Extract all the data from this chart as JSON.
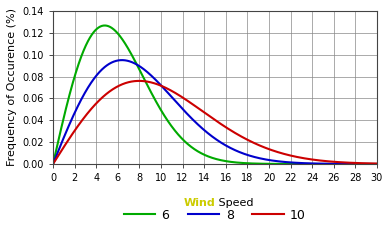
{
  "title": "",
  "xlabel_wind": "Wind",
  "xlabel_speed": " Speed",
  "ylabel": "Frequency of Occurence (%)",
  "xlim": [
    0,
    30
  ],
  "ylim": [
    0,
    0.14
  ],
  "xticks": [
    0,
    2,
    4,
    6,
    8,
    10,
    12,
    14,
    16,
    18,
    20,
    22,
    24,
    26,
    28,
    30
  ],
  "yticks": [
    0,
    0.02,
    0.04,
    0.06,
    0.08,
    0.1,
    0.12,
    0.14
  ],
  "series": [
    {
      "c": 6,
      "color": "#00aa00",
      "label": "6"
    },
    {
      "c": 8,
      "color": "#0000cc",
      "label": "8"
    },
    {
      "c": 10,
      "color": "#cc0000",
      "label": "10"
    }
  ],
  "wind_color": "#cccc00",
  "speed_color": "#000000",
  "background_color": "#ffffff",
  "grid_color": "#888888",
  "legend_fontsize": 9,
  "axis_label_fontsize": 8,
  "tick_fontsize": 7
}
